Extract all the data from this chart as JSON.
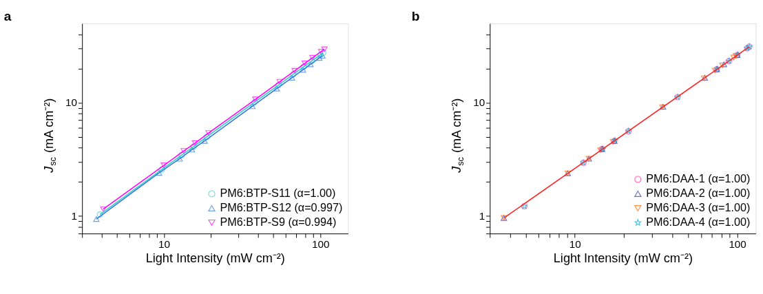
{
  "chart_data": [
    {
      "type": "line",
      "title": "a",
      "xlabel": "Light Intensity (mW cm⁻²)",
      "ylabel": "J$_{sc}$ (mA cm⁻²)",
      "log": "xy",
      "grid": false,
      "legend": "bottom right",
      "line_style": "solid",
      "xlim": [
        3,
        150
      ],
      "ylim": [
        0.7,
        50
      ],
      "xticks": [
        {
          "value": 3,
          "label": null
        },
        {
          "value": 4,
          "label": null
        },
        {
          "value": 5,
          "label": null
        },
        {
          "value": 6,
          "label": null
        },
        {
          "value": 7,
          "label": null
        },
        {
          "value": 8,
          "label": null
        },
        {
          "value": 9,
          "label": null
        },
        10,
        {
          "value": 20,
          "label": null
        },
        {
          "value": 30,
          "label": null
        },
        {
          "value": 40,
          "label": null
        },
        {
          "value": 50,
          "label": null
        },
        {
          "value": 60,
          "label": null
        },
        {
          "value": 70,
          "label": null
        },
        {
          "value": 80,
          "label": null
        },
        {
          "value": 90,
          "label": null
        },
        100
      ],
      "yticks": [
        {
          "value": 0.7,
          "label": null
        },
        {
          "value": 0.8,
          "label": null
        },
        {
          "value": 0.9,
          "label": null
        },
        1,
        {
          "value": 2,
          "label": null
        },
        {
          "value": 3,
          "label": null
        },
        {
          "value": 4,
          "label": null
        },
        {
          "value": 5,
          "label": null
        },
        {
          "value": 6,
          "label": null
        },
        {
          "value": 7,
          "label": null
        },
        {
          "value": 8,
          "label": null
        },
        {
          "value": 9,
          "label": null
        },
        10,
        {
          "value": 20,
          "label": null
        },
        {
          "value": 30,
          "label": null
        },
        {
          "value": 40,
          "label": null
        }
      ],
      "series": [
        {
          "name": "PM6:BTP-S11 (α=1.00)",
          "color": "#33cccc",
          "marker": "circle",
          "x": [
            3.9,
            9.7,
            13,
            15.5,
            18.8,
            38,
            54,
            67,
            78,
            88,
            100,
            104
          ],
          "values": [
            1.03,
            2.57,
            3.45,
            4.1,
            5.0,
            10.1,
            14.3,
            17.8,
            20.7,
            23.3,
            26.5,
            27.6
          ]
        },
        {
          "name": "PM6:BTP-S12 (α=0.997)",
          "color": "#3377dd",
          "marker": "triangle",
          "x": [
            3.7,
            9.3,
            12.6,
            15.1,
            18.2,
            36.7,
            52.6,
            65.8,
            77.3,
            86.4,
            98.4,
            103
          ],
          "values": [
            0.94,
            2.4,
            3.2,
            3.85,
            4.6,
            9.3,
            13.3,
            16.6,
            19.5,
            21.8,
            24.8,
            25.9
          ]
        },
        {
          "name": "PM6:BTP-S9 (α=0.994)",
          "color": "#ff00ff",
          "marker": "triangle_down",
          "x": [
            4.1,
            10,
            13.4,
            15.8,
            19.3,
            38.4,
            54.9,
            68.4,
            79.4,
            89,
            101,
            106
          ],
          "values": [
            1.15,
            2.8,
            3.75,
            4.4,
            5.4,
            10.7,
            15.3,
            19.1,
            22.2,
            24.9,
            28.2,
            29.6
          ]
        }
      ]
    },
    {
      "type": "scatter",
      "title": "b",
      "xlabel": "Light Intensity (mW cm⁻²)",
      "ylabel": "J$_{sc}$ (mA cm⁻²)",
      "log": "xy",
      "grid": false,
      "legend": "bottom right",
      "line_style": "solid",
      "xlim": [
        3,
        130
      ],
      "ylim": [
        0.7,
        50
      ],
      "xticks": [
        {
          "value": 3,
          "label": null
        },
        {
          "value": 4,
          "label": null
        },
        {
          "value": 5,
          "label": null
        },
        {
          "value": 6,
          "label": null
        },
        {
          "value": 7,
          "label": null
        },
        {
          "value": 8,
          "label": null
        },
        {
          "value": 9,
          "label": null
        },
        10,
        {
          "value": 20,
          "label": null
        },
        {
          "value": 30,
          "label": null
        },
        {
          "value": 40,
          "label": null
        },
        {
          "value": 50,
          "label": null
        },
        {
          "value": 60,
          "label": null
        },
        {
          "value": 70,
          "label": null
        },
        {
          "value": 80,
          "label": null
        },
        {
          "value": 90,
          "label": null
        },
        100
      ],
      "yticks": [
        {
          "value": 0.7,
          "label": null
        },
        {
          "value": 0.8,
          "label": null
        },
        {
          "value": 0.9,
          "label": null
        },
        1,
        {
          "value": 2,
          "label": null
        },
        {
          "value": 3,
          "label": null
        },
        {
          "value": 4,
          "label": null
        },
        {
          "value": 5,
          "label": null
        },
        {
          "value": 6,
          "label": null
        },
        {
          "value": 7,
          "label": null
        },
        {
          "value": 8,
          "label": null
        },
        {
          "value": 9,
          "label": null
        },
        10,
        {
          "value": 20,
          "label": null
        },
        {
          "value": 30,
          "label": null
        },
        {
          "value": 40,
          "label": null
        }
      ],
      "series": [
        {
          "name": "PM6:DAA-1 (α=1.00)",
          "color": "#ff3399",
          "marker": "circle",
          "x": [
            4.89,
            11.3,
            14.7,
            17.5,
            21.4,
            42.9,
            74.8,
            88.8,
            100,
            115,
            118.6
          ],
          "values": [
            1.22,
            2.95,
            3.9,
            4.6,
            5.6,
            11.2,
            19.7,
            23.3,
            26.3,
            30.2,
            31.2
          ]
        },
        {
          "name": "PM6:DAA-2 (α=1.00)",
          "color": "#3333aa",
          "marker": "triangle",
          "x": [
            3.66,
            9.04,
            12.2,
            14.7,
            17.5,
            34.9,
            63.1,
            74.8,
            82.8,
            100
          ],
          "values": [
            0.96,
            2.38,
            3.2,
            3.9,
            4.6,
            9.2,
            16.6,
            19.7,
            21.8,
            26.3
          ]
        },
        {
          "name": "PM6:DAA-3 (α=1.00)",
          "color": "#ff6600",
          "marker": "triangle_down",
          "x": [
            3.66,
            9.04,
            12.2,
            14.4,
            17.2,
            34.6,
            62.5,
            73,
            81,
            95,
            98
          ],
          "values": [
            0.96,
            2.38,
            3.2,
            3.8,
            4.5,
            9.1,
            16.4,
            19.2,
            21.3,
            25,
            25.8
          ]
        },
        {
          "name": "PM6:DAA-4 (α=1.00)",
          "color": "#00aadd",
          "marker": "star",
          "x": [
            4.89,
            11.3,
            14.9,
            17.7,
            21.4,
            42.9,
            75.5,
            88.8,
            101,
            115,
            118.6
          ],
          "values": [
            1.22,
            2.95,
            3.9,
            4.65,
            5.6,
            11.2,
            19.9,
            23.3,
            26.6,
            30.2,
            31.2
          ]
        },
        {
          "type": "line",
          "color": "#ff2020",
          "marker": "none",
          "x": [
            3.66,
            118.6
          ],
          "values": [
            0.96,
            31.2
          ]
        }
      ]
    }
  ]
}
